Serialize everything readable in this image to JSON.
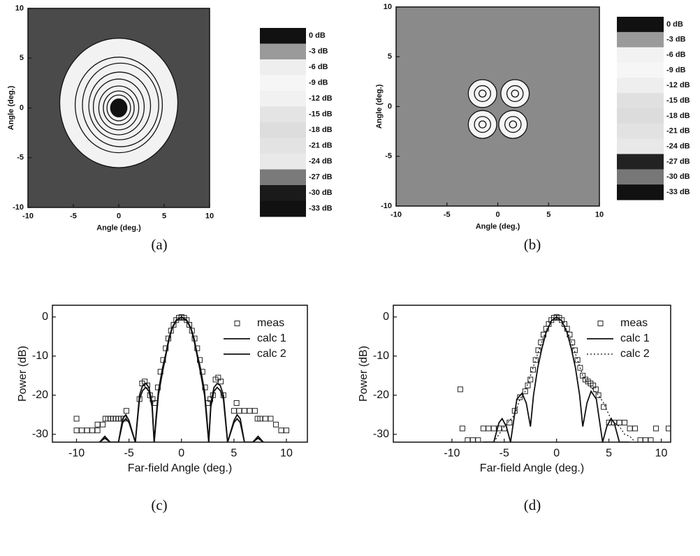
{
  "chart_data": [
    {
      "type": "contour",
      "label": "(a)",
      "xlabel": "Angle (deg.)",
      "ylabel": "Angle (deg.)",
      "xlim": [
        -10,
        10
      ],
      "ylim": [
        -10,
        10
      ],
      "xticks": [
        -10,
        -5,
        0,
        5,
        10
      ],
      "yticks": [
        -10,
        -5,
        0,
        5,
        10
      ],
      "background": "#4a4a4a",
      "colorbar": {
        "ticks": [
          {
            "value": 0,
            "label": "0 dB"
          },
          {
            "value": -3,
            "label": "-3 dB"
          },
          {
            "value": -6,
            "label": "-6 dB"
          },
          {
            "value": -9,
            "label": "-9 dB"
          },
          {
            "value": -12,
            "label": "-12 dB"
          },
          {
            "value": -15,
            "label": "-15 dB"
          },
          {
            "value": -18,
            "label": "-18 dB"
          },
          {
            "value": -21,
            "label": "-21 dB"
          },
          {
            "value": -24,
            "label": "-24 dB"
          },
          {
            "value": -27,
            "label": "-27 dB"
          },
          {
            "value": -30,
            "label": "-30 dB"
          },
          {
            "value": -33,
            "label": "-33 dB"
          }
        ],
        "colors": [
          "#111111",
          "#9a9a9a",
          "#eeeeee",
          "#f6f6f6",
          "#f1f1f1",
          "#e4e4e4",
          "#dddddd",
          "#e3e3e3",
          "#e9e9e9",
          "#7a7a7a",
          "#1a1a1a",
          "#111111"
        ]
      },
      "contours": [
        {
          "level": -27,
          "x": 0,
          "y": 0.5,
          "r": 6.5,
          "fill": "#f2f2f2"
        },
        {
          "level": -24,
          "x": 0,
          "y": 0.3,
          "r": 4.8,
          "fill": "none"
        },
        {
          "level": -21,
          "x": 0.2,
          "y": 0.3,
          "r": 4.2,
          "fill": "none"
        },
        {
          "level": -18,
          "x": 0.1,
          "y": 0.2,
          "r": 3.4,
          "fill": "none"
        },
        {
          "level": -15,
          "x": 0,
          "y": 0.1,
          "r": 2.8,
          "fill": "none"
        },
        {
          "level": -12,
          "x": 0,
          "y": 0,
          "r": 2.2,
          "fill": "none"
        },
        {
          "level": -9,
          "x": 0,
          "y": 0,
          "r": 1.7,
          "fill": "none"
        },
        {
          "level": -6,
          "x": 0,
          "y": 0,
          "r": 1.3,
          "fill": "none"
        },
        {
          "level": -3,
          "x": 0,
          "y": 0,
          "r": 0.9,
          "fill": "#111111"
        }
      ]
    },
    {
      "type": "contour",
      "label": "(b)",
      "xlabel": "Angle (deg.)",
      "ylabel": "Angle (deg.)",
      "xlim": [
        -10,
        10
      ],
      "ylim": [
        -10,
        10
      ],
      "xticks": [
        -10,
        -5,
        0,
        5,
        10
      ],
      "yticks": [
        -10,
        -5,
        0,
        5,
        10
      ],
      "background": "#8a8a8a",
      "colorbar": {
        "ticks": [
          {
            "value": 0,
            "label": "0 dB"
          },
          {
            "value": -3,
            "label": "-3 dB"
          },
          {
            "value": -6,
            "label": "-6 dB"
          },
          {
            "value": -9,
            "label": "-9 dB"
          },
          {
            "value": -12,
            "label": "-12 dB"
          },
          {
            "value": -15,
            "label": "-15 dB"
          },
          {
            "value": -18,
            "label": "-18 dB"
          },
          {
            "value": -21,
            "label": "-21 dB"
          },
          {
            "value": -24,
            "label": "-24 dB"
          },
          {
            "value": -27,
            "label": "-27 dB"
          },
          {
            "value": -30,
            "label": "-30 dB"
          },
          {
            "value": -33,
            "label": "-33 dB"
          }
        ],
        "colors": [
          "#111111",
          "#9a9a9a",
          "#f2f2f2",
          "#f6f6f6",
          "#eeeeee",
          "#e0e0e0",
          "#dcdcdc",
          "#e2e2e2",
          "#e8e8e8",
          "#222222",
          "#777777",
          "#111111"
        ]
      },
      "contours": [
        {
          "level": -27,
          "x": -1.5,
          "y": 1.3,
          "r": 1.4,
          "fill": "#f5f5f5"
        },
        {
          "level": -27,
          "x": 1.7,
          "y": 1.3,
          "r": 1.4,
          "fill": "#f5f5f5"
        },
        {
          "level": -27,
          "x": -1.5,
          "y": -1.8,
          "r": 1.4,
          "fill": "#f5f5f5"
        },
        {
          "level": -27,
          "x": 1.5,
          "y": -1.8,
          "r": 1.4,
          "fill": "#f5f5f5"
        },
        {
          "level": -15,
          "x": -1.5,
          "y": 1.3,
          "r": 0.8,
          "fill": "none"
        },
        {
          "level": -15,
          "x": 1.7,
          "y": 1.3,
          "r": 0.8,
          "fill": "none"
        },
        {
          "level": -15,
          "x": -1.5,
          "y": -1.8,
          "r": 0.8,
          "fill": "none"
        },
        {
          "level": -15,
          "x": 1.5,
          "y": -1.8,
          "r": 0.8,
          "fill": "none"
        },
        {
          "level": -12,
          "x": -1.5,
          "y": 1.3,
          "r": 0.35,
          "fill": "none"
        },
        {
          "level": -12,
          "x": 1.7,
          "y": 1.3,
          "r": 0.35,
          "fill": "none"
        },
        {
          "level": -12,
          "x": -1.5,
          "y": -1.8,
          "r": 0.35,
          "fill": "none"
        },
        {
          "level": -12,
          "x": 1.5,
          "y": -1.8,
          "r": 0.35,
          "fill": "none"
        }
      ]
    },
    {
      "type": "line",
      "label": "(c)",
      "xlabel": "Far-field Angle (deg.)",
      "ylabel": "Power (dB)",
      "xlim": [
        -12.3,
        12
      ],
      "ylim": [
        -32,
        3
      ],
      "xticks": [
        -10,
        -5,
        0,
        5,
        10
      ],
      "yticks": [
        0,
        -10,
        -20,
        -30
      ],
      "legend": "upper right",
      "series": [
        {
          "name": "meas",
          "color": "#222222",
          "marker": "square",
          "dash": "none",
          "x": [
            -10,
            -10,
            -9.5,
            -9,
            -8.5,
            -8,
            -8,
            -7.5,
            -7.25,
            -7,
            -6.75,
            -6.5,
            -6.25,
            -6,
            -5.75,
            -5.5,
            -5.25,
            -4,
            -3.75,
            -3.5,
            -3.25,
            -3,
            -2.75,
            -2.5,
            -2.25,
            -2,
            -1.75,
            -1.5,
            -1.25,
            -1,
            -0.75,
            -0.5,
            -0.25,
            0,
            0.25,
            0.5,
            0.75,
            1,
            1.25,
            1.5,
            1.75,
            2,
            2.25,
            2.5,
            2.75,
            3,
            3.25,
            3.5,
            3.75,
            4,
            5,
            5.25,
            5.5,
            6,
            6.5,
            7,
            7.25,
            7.5,
            8,
            8.5,
            9,
            9.5,
            10
          ],
          "values": [
            -29,
            -26,
            -29,
            -29,
            -29,
            -29,
            -27.5,
            -27.5,
            -26,
            -26,
            -26,
            -26,
            -26,
            -26,
            -26,
            -26,
            -24,
            -21,
            -17,
            -16.5,
            -17.5,
            -20,
            -21,
            -22,
            -18,
            -14,
            -11,
            -8,
            -5.5,
            -3.5,
            -2,
            -0.8,
            -0.2,
            0,
            -0.2,
            -0.8,
            -2,
            -3.5,
            -5.5,
            -8,
            -11,
            -14,
            -18,
            -22,
            -21,
            -20,
            -16,
            -15.5,
            -16.5,
            -20,
            -24,
            -22,
            -24,
            -24,
            -24,
            -24,
            -26,
            -26,
            -26,
            -26,
            -27.5,
            -29,
            -29
          ]
        },
        {
          "name": "calc 1",
          "color": "#111111",
          "marker": "none",
          "dash": "solid",
          "x": [
            -7.8,
            -7.3,
            -6.8,
            -6,
            -5.6,
            -5.3,
            -5,
            -4.4,
            -4,
            -3.7,
            -3.4,
            -3.1,
            -2.8,
            -2.6,
            -2.4,
            -2.2,
            -1.8,
            -1.5,
            -1.2,
            -0.9,
            -0.5,
            0,
            0.5,
            0.9,
            1.2,
            1.5,
            1.8,
            2.2,
            2.4,
            2.6,
            2.8,
            3.1,
            3.4,
            3.7,
            4,
            4.4,
            5,
            5.3,
            5.6,
            6,
            6.8,
            7.3,
            7.8
          ],
          "values": [
            -32,
            -30.5,
            -32,
            -32,
            -27,
            -26,
            -27,
            -32,
            -21,
            -18.8,
            -18,
            -19,
            -23,
            -32,
            -26,
            -20,
            -14,
            -10,
            -6,
            -3,
            -1,
            0,
            -1,
            -3,
            -6,
            -10,
            -14,
            -20,
            -26,
            -32,
            -23,
            -19,
            -18,
            -18.8,
            -21,
            -32,
            -27,
            -26,
            -27,
            -32,
            -32,
            -30.5,
            -32
          ]
        },
        {
          "name": "calc 2",
          "color": "#111111",
          "marker": "none",
          "dash": "solid",
          "x": [
            -7.8,
            -7.3,
            -6.8,
            -6,
            -5.6,
            -5.3,
            -5,
            -4.4,
            -4,
            -3.7,
            -3.4,
            -3.1,
            -2.8,
            -2.6,
            -2.4,
            -2.2,
            -1.8,
            -1.5,
            -1.2,
            -0.9,
            -0.5,
            0,
            0.5,
            0.9,
            1.2,
            1.5,
            1.8,
            2.2,
            2.4,
            2.6,
            2.8,
            3.1,
            3.4,
            3.7,
            4,
            4.4,
            5,
            5.3,
            5.6,
            6,
            6.8,
            7.3,
            7.8
          ],
          "values": [
            -32,
            -31,
            -32,
            -32,
            -26,
            -25,
            -26.5,
            -32,
            -20,
            -17.5,
            -17,
            -18,
            -22,
            -32,
            -25,
            -19,
            -13,
            -9.5,
            -5.5,
            -2.8,
            -0.8,
            0,
            -0.8,
            -2.8,
            -5.5,
            -9.5,
            -13,
            -19,
            -25,
            -32,
            -22,
            -18,
            -17,
            -17.5,
            -20,
            -32,
            -26.5,
            -25,
            -26,
            -32,
            -32,
            -31,
            -32
          ]
        }
      ]
    },
    {
      "type": "line",
      "label": "(d)",
      "xlabel": "Far-field Angle (deg.)",
      "ylabel": "Power (dB)",
      "xlim": [
        -15.6,
        10.9
      ],
      "ylim": [
        -32,
        3
      ],
      "xticks": [
        -10,
        -5,
        0,
        5,
        10
      ],
      "yticks": [
        0,
        -10,
        -20,
        -30
      ],
      "legend": "upper right",
      "series": [
        {
          "name": "meas",
          "color": "#222222",
          "marker": "square",
          "dash": "none",
          "x": [
            -9.2,
            -9,
            -8.5,
            -8,
            -7.5,
            -7,
            -6.5,
            -6,
            -5.5,
            -5,
            -4.5,
            -4,
            -3.5,
            -3,
            -2.75,
            -2.5,
            -2.25,
            -2,
            -1.75,
            -1.5,
            -1.25,
            -1,
            -0.75,
            -0.5,
            -0.25,
            0,
            0.25,
            0.5,
            0.75,
            1,
            1.25,
            1.5,
            1.75,
            2,
            2.25,
            2.5,
            2.75,
            3,
            3.25,
            3.5,
            3.75,
            4,
            4.5,
            5,
            5.5,
            6,
            6.5,
            7,
            7.5,
            8,
            8.5,
            9,
            9.5,
            10.7
          ],
          "values": [
            -18.5,
            -28.5,
            -31.5,
            -31.5,
            -31.5,
            -28.5,
            -28.5,
            -28.5,
            -28.5,
            -28.5,
            -27,
            -24,
            -20.5,
            -19,
            -17.5,
            -16,
            -13.5,
            -11,
            -8.5,
            -6.5,
            -4.5,
            -3,
            -1.8,
            -0.8,
            -0.2,
            0,
            -0.2,
            -0.8,
            -1.8,
            -3,
            -4.5,
            -6.5,
            -8.5,
            -11,
            -13,
            -15,
            -16,
            -16.5,
            -17,
            -17.5,
            -18.5,
            -20,
            -23,
            -27,
            -27,
            -27,
            -27,
            -28.5,
            -28.5,
            -31.5,
            -31.5,
            -31.5,
            -28.5,
            -28.5
          ]
        },
        {
          "name": "calc 1",
          "color": "#111111",
          "marker": "none",
          "dash": "solid",
          "x": [
            -7,
            -6,
            -5.5,
            -5.2,
            -4.8,
            -4.4,
            -3.8,
            -3.3,
            -2.9,
            -2.5,
            -2.2,
            -1.8,
            -1.4,
            -1,
            -0.5,
            0,
            0.5,
            1,
            1.4,
            1.8,
            2.2,
            2.5,
            2.9,
            3.3,
            3.8,
            4.4,
            4.8,
            5.2,
            5.5,
            6,
            7
          ],
          "values": [
            -32,
            -32,
            -27,
            -26,
            -28,
            -32,
            -21,
            -19.5,
            -22,
            -28,
            -20,
            -13,
            -8,
            -4,
            -1,
            0,
            -1,
            -4,
            -8,
            -13,
            -20,
            -28,
            -22,
            -19,
            -21,
            -32,
            -28,
            -26,
            -27,
            -32,
            -32
          ]
        },
        {
          "name": "calc 2",
          "color": "#111111",
          "marker": "none",
          "dash": "dotted",
          "x": [
            -6,
            -5,
            -4,
            -3.5,
            -3,
            -2.5,
            -2,
            -1.5,
            -1,
            -0.5,
            0,
            0.5,
            1,
            1.5,
            2,
            2.5,
            3,
            3.5,
            4,
            4.5,
            5,
            5.5,
            6,
            6.5,
            7,
            7.5
          ],
          "values": [
            -32,
            -28,
            -25,
            -21,
            -19,
            -15,
            -11,
            -7,
            -3.5,
            -1,
            0,
            -1,
            -3.5,
            -7,
            -11,
            -15,
            -17,
            -18.5,
            -20,
            -22,
            -25,
            -27,
            -28,
            -30,
            -30.5,
            -32
          ]
        }
      ]
    }
  ]
}
